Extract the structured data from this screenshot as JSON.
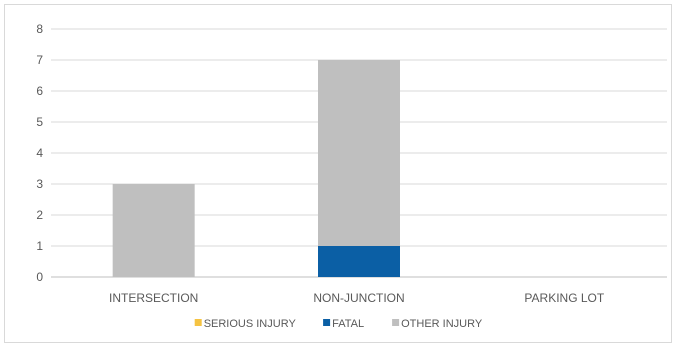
{
  "chart_data": {
    "type": "bar",
    "stacked": true,
    "title": "",
    "xlabel": "",
    "ylabel": "",
    "categories": [
      "INTERSECTION",
      "NON-JUNCTION",
      "PARKING LOT"
    ],
    "ylim": [
      0,
      8
    ],
    "yticks": [
      0,
      1,
      2,
      3,
      4,
      5,
      6,
      7,
      8
    ],
    "grid": true,
    "legend_position": "bottom",
    "series": [
      {
        "name": "SERIOUS INJURY",
        "color": "#f5c342",
        "values": [
          0,
          0,
          0
        ]
      },
      {
        "name": "FATAL",
        "color": "#0b5fa5",
        "values": [
          0,
          1,
          0
        ]
      },
      {
        "name": "OTHER INJURY",
        "color": "#bfbfbf",
        "values": [
          3,
          6,
          0
        ]
      }
    ]
  }
}
